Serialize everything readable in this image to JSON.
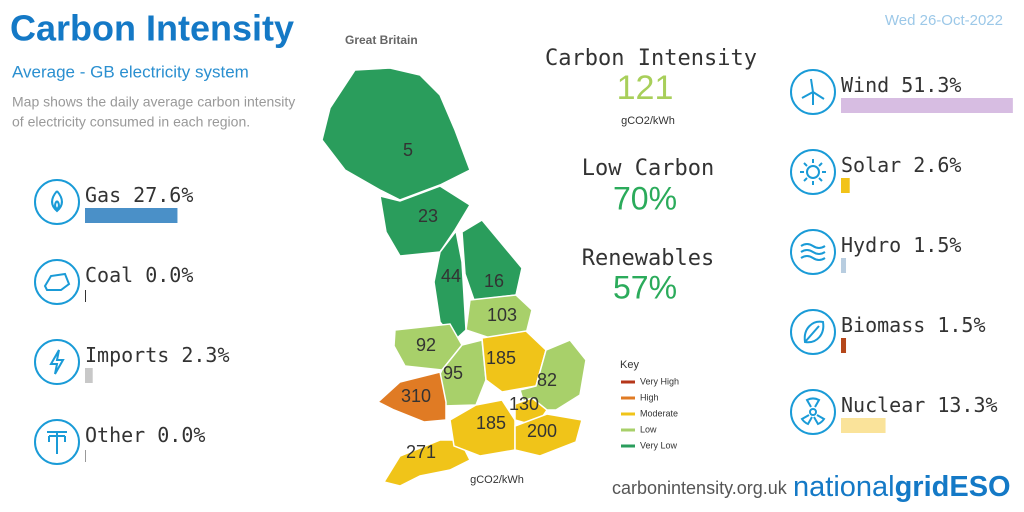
{
  "header": {
    "title": "Carbon Intensity",
    "region": "Great Britain",
    "subtitle": "Average - GB electricity system",
    "description": [
      "Map shows the daily average carbon intensity",
      "of electricity consumed in each region."
    ],
    "date": "Wed 26-Oct-2022"
  },
  "summary": {
    "carbon_intensity_label": "Carbon Intensity",
    "carbon_intensity": 121,
    "unit": "gCO2/kWh",
    "low_carbon_label": "Low Carbon",
    "low_carbon": "70%",
    "renewables_label": "Renewables",
    "renewables": "57%"
  },
  "fuels": [
    {
      "name": "Gas",
      "value": 27.6,
      "value_label": "27.6%",
      "color": "#4a90c8"
    },
    {
      "name": "Coal",
      "value": 0.0,
      "value_label": "0.0%",
      "color": "#333333"
    },
    {
      "name": "Imports",
      "value": 2.3,
      "value_label": "2.3%",
      "color": "#c8c8c8"
    },
    {
      "name": "Other",
      "value": 0.0,
      "value_label": "0.0%",
      "color": "#999999"
    },
    {
      "name": "Wind",
      "value": 51.3,
      "value_label": "51.3%",
      "color": "#d7bde2"
    },
    {
      "name": "Solar",
      "value": 2.6,
      "value_label": "2.6%",
      "color": "#f2c318"
    },
    {
      "name": "Hydro",
      "value": 1.5,
      "value_label": "1.5%",
      "color": "#b8cde0"
    },
    {
      "name": "Biomass",
      "value": 1.5,
      "value_label": "1.5%",
      "color": "#b5471a"
    },
    {
      "name": "Nuclear",
      "value": 13.3,
      "value_label": "13.3%",
      "color": "#fae39a"
    }
  ],
  "map": {
    "regions": [
      {
        "value": 5,
        "color": "#2a9d5c"
      },
      {
        "value": 23,
        "color": "#2a9d5c"
      },
      {
        "value": 44,
        "color": "#2a9d5c"
      },
      {
        "value": 16,
        "color": "#2a9d5c"
      },
      {
        "value": 103,
        "color": "#a8d06a"
      },
      {
        "value": 92,
        "color": "#a8d06a"
      },
      {
        "value": 95,
        "color": "#a8d06a"
      },
      {
        "value": 185,
        "color": "#f0c419"
      },
      {
        "value": 82,
        "color": "#a8d06a"
      },
      {
        "value": 310,
        "color": "#e07b24"
      },
      {
        "value": 271,
        "color": "#f0c419"
      },
      {
        "value": 185,
        "color": "#f0c419"
      },
      {
        "value": 130,
        "color": "#f0c419"
      },
      {
        "value": 200,
        "color": "#f0c419"
      }
    ],
    "unit": "gCO2/kWh",
    "key": {
      "title": "Key",
      "items": [
        {
          "label": "Very High",
          "color": "#b5361a"
        },
        {
          "label": "High",
          "color": "#e07b24"
        },
        {
          "label": "Moderate",
          "color": "#f0c419"
        },
        {
          "label": "Low",
          "color": "#a8d06a"
        },
        {
          "label": "Very Low",
          "color": "#2a9d5c"
        }
      ]
    }
  },
  "footer": {
    "url": "carbonintensity.org.uk",
    "logo": [
      "national",
      "grid",
      "ESO"
    ]
  }
}
